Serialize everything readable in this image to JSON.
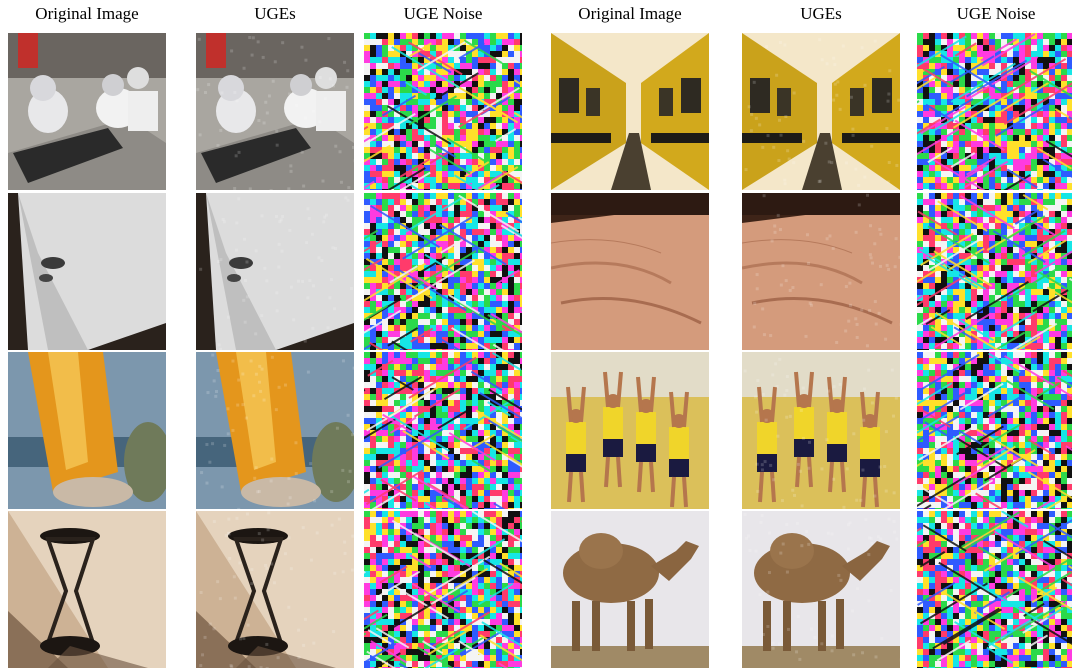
{
  "headers": [
    "Original Image",
    "UGEs",
    "UGE Noise",
    "Original Image",
    "UGEs",
    "UGE Noise"
  ],
  "rows": [
    {
      "left_scene": "go-kart-racers",
      "right_scene": "school-buses"
    },
    {
      "left_scene": "white-surface-corner",
      "right_scene": "hand-palm"
    },
    {
      "left_scene": "orange-pill-bottle",
      "right_scene": "basketball-players"
    },
    {
      "left_scene": "hourglass",
      "right_scene": "camel"
    }
  ],
  "colors": {
    "background": "#ffffff",
    "noise_palette": [
      "#ff3b6b",
      "#2bd94a",
      "#2f5bff",
      "#ffe02a",
      "#16e6e6",
      "#ff3be0",
      "#111111",
      "#f4f4f4"
    ]
  }
}
